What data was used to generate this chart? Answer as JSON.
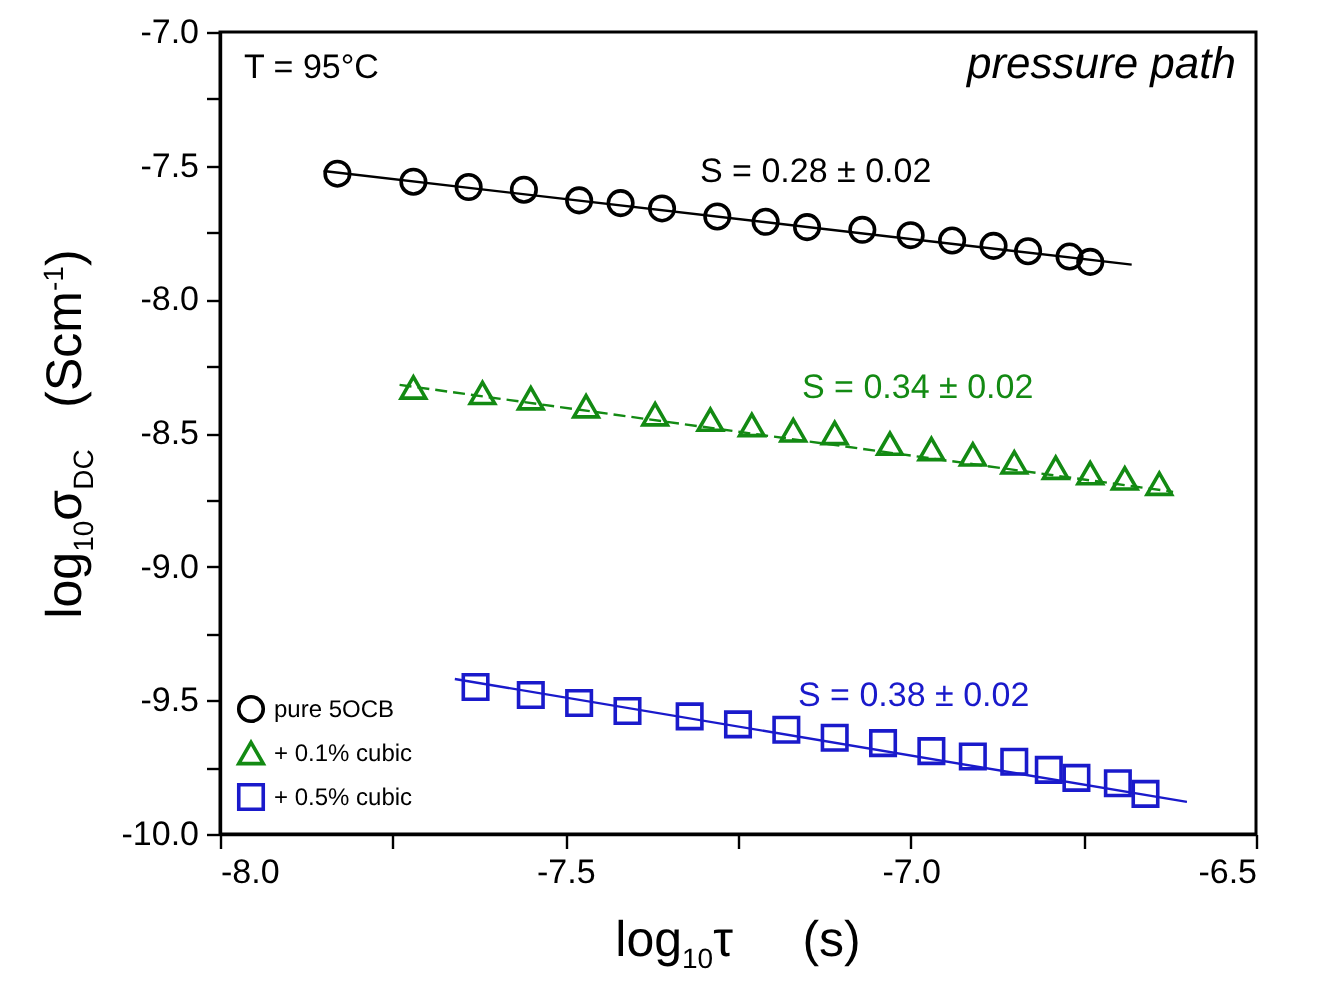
{
  "chart_data": {
    "type": "scatter",
    "xlabel": "log$_{10}$τ     (s)",
    "ylabel": "log$_{10}$σ$_{DC}$   (Scm$^{-1}$)",
    "xlim": [
      -8.0,
      -6.5
    ],
    "xticks": [
      {
        "value": -8,
        "label": "-8.0"
      },
      {
        "value": -7.75,
        "label": null
      },
      {
        "value": -7.5,
        "label": "-7.5"
      },
      {
        "value": -7.25,
        "label": null
      },
      {
        "value": -7,
        "label": "-7.0"
      },
      {
        "value": -6.75,
        "label": null
      },
      {
        "value": -6.5,
        "label": "-6.5"
      }
    ],
    "ylim": [
      -10.0,
      -7.0
    ],
    "yticks": [
      {
        "value": -10,
        "label": "-10.0"
      },
      {
        "value": -9.75,
        "label": null
      },
      {
        "value": -9.5,
        "label": "-9.5"
      },
      {
        "value": -9.25,
        "label": null
      },
      {
        "value": -9,
        "label": "-9.0"
      },
      {
        "value": -8.75,
        "label": null
      },
      {
        "value": -8.5,
        "label": "-8.5"
      },
      {
        "value": -8.25,
        "label": null
      },
      {
        "value": -8,
        "label": "-8.0"
      },
      {
        "value": -7.75,
        "label": null
      },
      {
        "value": -7.5,
        "label": "-7.5"
      },
      {
        "value": -7.25,
        "label": null
      },
      {
        "value": -7,
        "label": "-7.0"
      }
    ],
    "grid": false,
    "legend": "bottom left",
    "annotations": [
      "T = 95°C",
      "pressure path",
      "S = 0.28 ± 0.02",
      "S = 0.34 ± 0.02",
      "S = 0.38 ± 0.02"
    ],
    "series": [
      {
        "name": "pure 5OCB",
        "color": "#000000",
        "marker": "circle",
        "x": [
          -7.83,
          -7.72,
          -7.64,
          -7.56,
          -7.48,
          -7.42,
          -7.36,
          -7.28,
          -7.21,
          -7.15,
          -7.07,
          -7.0,
          -6.94,
          -6.88,
          -6.83,
          -6.77,
          -6.74
        ],
        "values": [
          -7.53,
          -7.56,
          -7.58,
          -7.59,
          -7.63,
          -7.64,
          -7.66,
          -7.69,
          -7.71,
          -7.73,
          -7.74,
          -7.76,
          -7.78,
          -7.8,
          -7.82,
          -7.84,
          -7.86
        ]
      },
      {
        "name": "+ 0.1% cubic",
        "color": "#138a13",
        "marker": "triangle",
        "x": [
          -7.72,
          -7.62,
          -7.55,
          -7.47,
          -7.37,
          -7.29,
          -7.23,
          -7.17,
          -7.11,
          -7.03,
          -6.97,
          -6.91,
          -6.85,
          -6.79,
          -6.74,
          -6.69,
          -6.64
        ],
        "values": [
          -8.33,
          -8.35,
          -8.37,
          -8.4,
          -8.43,
          -8.45,
          -8.47,
          -8.49,
          -8.5,
          -8.54,
          -8.56,
          -8.58,
          -8.61,
          -8.63,
          -8.65,
          -8.67,
          -8.69
        ]
      },
      {
        "name": "+ 0.5% cubic",
        "color": "#1a1acb",
        "marker": "square",
        "x": [
          -7.63,
          -7.55,
          -7.48,
          -7.41,
          -7.32,
          -7.25,
          -7.18,
          -7.11,
          -7.04,
          -6.97,
          -6.91,
          -6.85,
          -6.8,
          -6.76,
          -6.7,
          -6.66
        ],
        "values": [
          -9.45,
          -9.48,
          -9.51,
          -9.54,
          -9.56,
          -9.59,
          -9.61,
          -9.64,
          -9.66,
          -9.69,
          -9.71,
          -9.73,
          -9.76,
          -9.79,
          -9.81,
          -9.85
        ]
      },
      {
        "type": "line",
        "color": "#000000",
        "line_style": "solid",
        "x": [
          -7.85,
          -6.68
        ],
        "values": [
          -7.52,
          -7.87
        ]
      },
      {
        "type": "line",
        "color": "#138a13",
        "line_style": "dashed",
        "x": [
          -7.74,
          -6.62
        ],
        "values": [
          -8.32,
          -8.72
        ]
      },
      {
        "type": "line",
        "color": "#1a1acb",
        "line_style": "solid",
        "x": [
          -7.66,
          -6.6
        ],
        "values": [
          -9.42,
          -9.88
        ]
      }
    ]
  }
}
